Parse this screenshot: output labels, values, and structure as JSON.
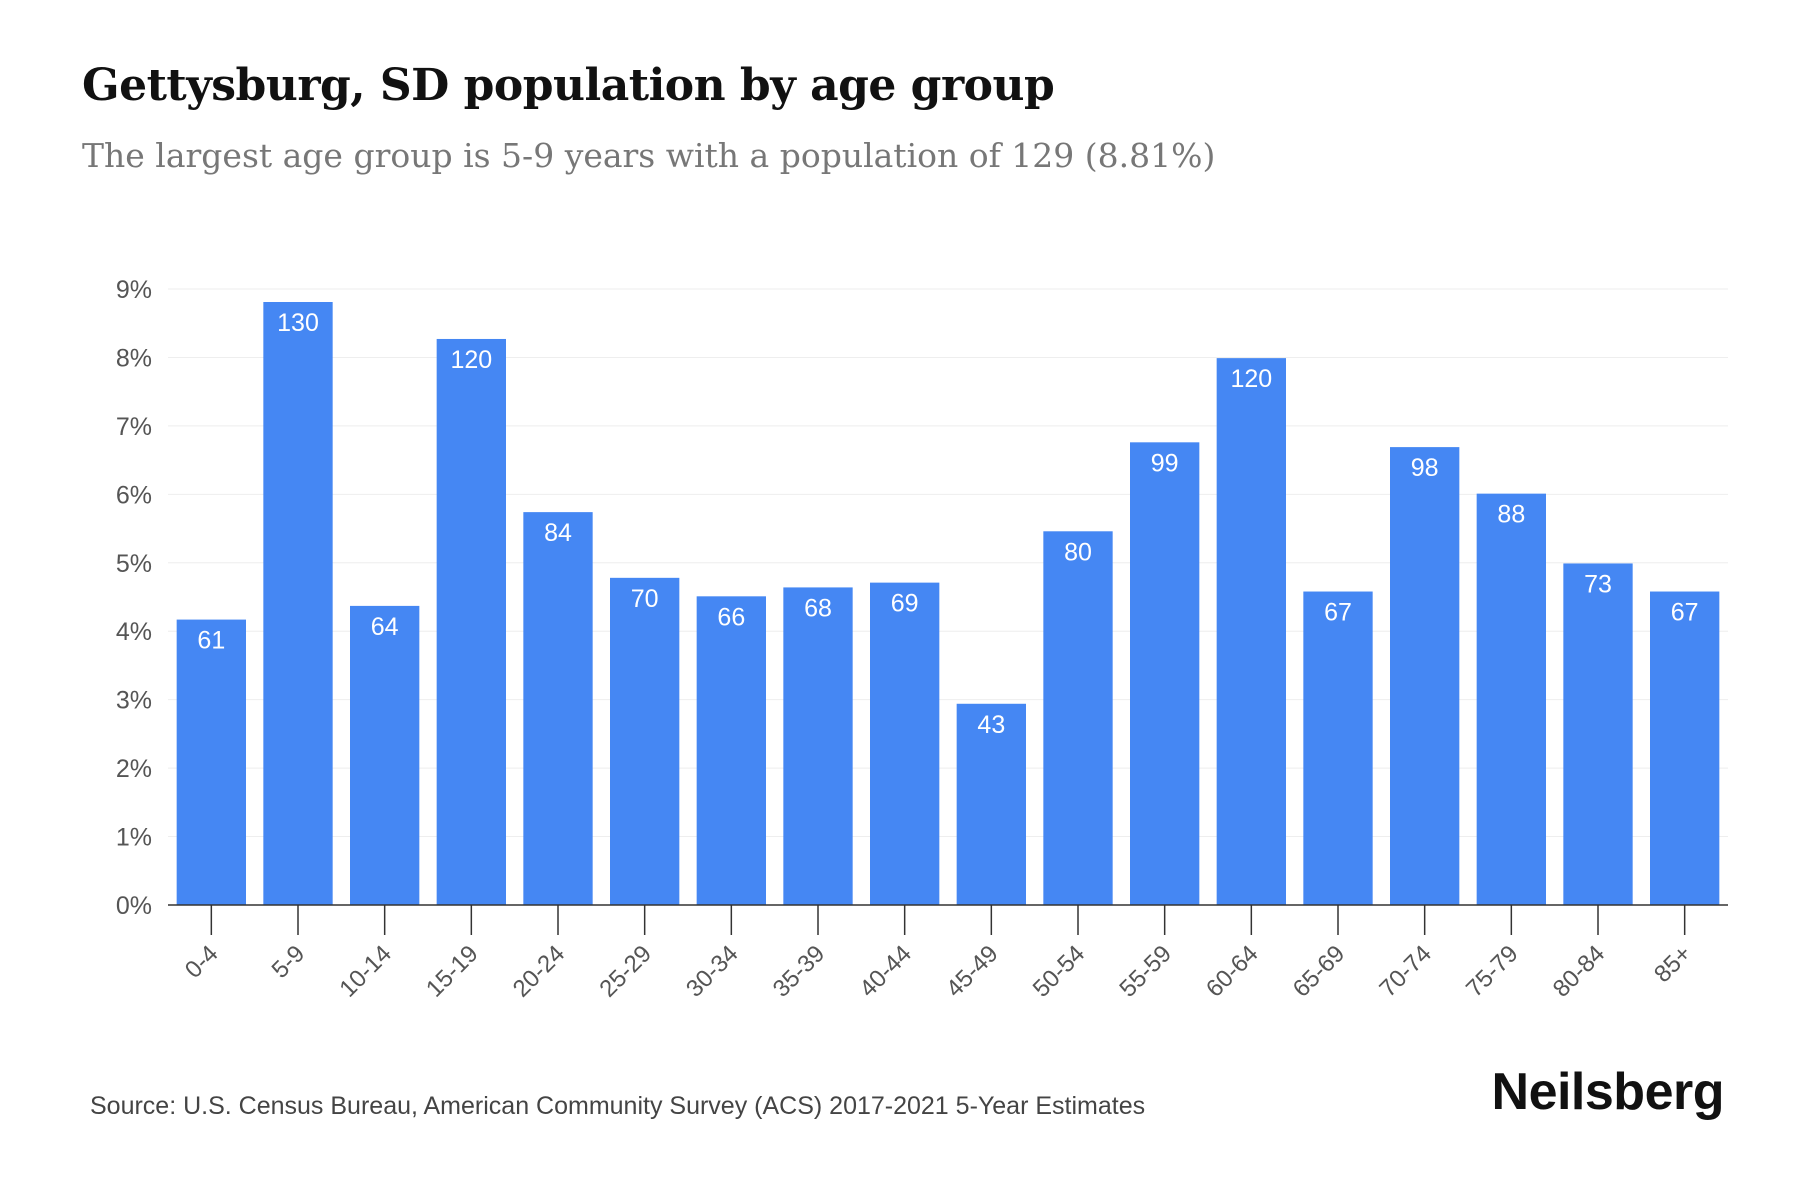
{
  "title": "Gettysburg, SD population by age group",
  "subtitle": "The largest age group is 5-9 years with a population of 129 (8.81%)",
  "source": "Source: U.S. Census Bureau, American Community Survey (ACS) 2017-2021 5-Year Estimates",
  "brand": "Neilsberg",
  "colors": {
    "bar": "#4587F3",
    "bar_label": "#ffffff",
    "axis_text": "#555555",
    "grid": "#eeeeee"
  },
  "chart_data": {
    "type": "bar",
    "categories": [
      "0-4",
      "5-9",
      "10-14",
      "15-19",
      "20-24",
      "25-29",
      "30-34",
      "35-39",
      "40-44",
      "45-49",
      "50-54",
      "55-59",
      "60-64",
      "65-69",
      "70-74",
      "75-79",
      "80-84",
      "85+"
    ],
    "values": [
      4.17,
      8.81,
      4.37,
      8.27,
      5.74,
      4.78,
      4.51,
      4.64,
      4.71,
      2.94,
      5.46,
      6.76,
      7.99,
      4.58,
      6.69,
      6.01,
      4.99,
      4.58
    ],
    "data_labels": [
      "61",
      "130",
      "64",
      "120",
      "84",
      "70",
      "66",
      "68",
      "69",
      "43",
      "80",
      "99",
      "120",
      "67",
      "98",
      "88",
      "73",
      "67"
    ],
    "y_ticks": [
      "0%",
      "1%",
      "2%",
      "3%",
      "4%",
      "5%",
      "6%",
      "7%",
      "8%",
      "9%"
    ],
    "ylim": [
      0,
      9
    ],
    "grid": true,
    "xlabel": "",
    "ylabel": ""
  }
}
